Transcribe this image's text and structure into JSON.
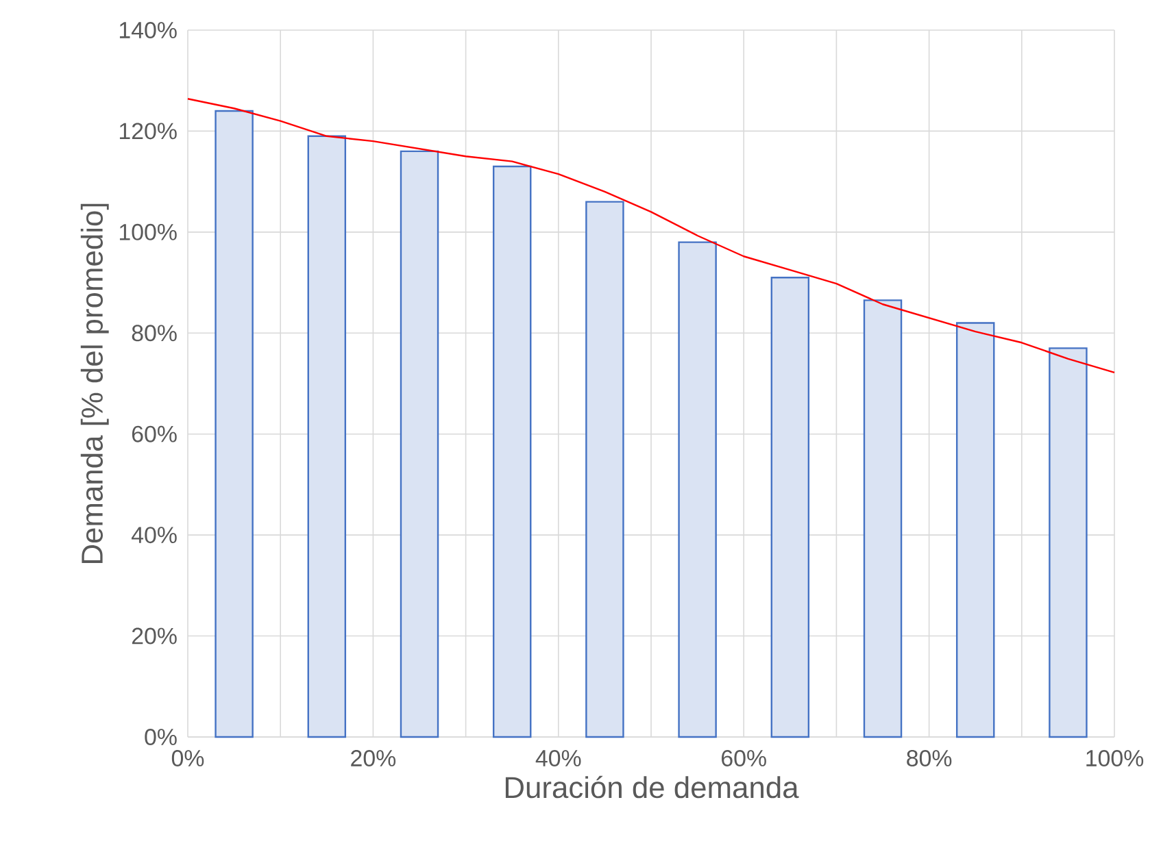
{
  "chart_data": {
    "type": "bar",
    "xlabel": "Duración de demanda",
    "ylabel": "Demanda [% del promedio]",
    "x": [
      5,
      15,
      25,
      35,
      45,
      55,
      65,
      75,
      85,
      95
    ],
    "series": [
      {
        "color": "#4472c4",
        "values": [
          124,
          119,
          116,
          113,
          106,
          98,
          91,
          86.5,
          82,
          77
        ]
      },
      {
        "type": "line",
        "color": "#ff0000",
        "x": [
          0,
          5,
          10,
          15,
          20,
          25,
          30,
          35,
          40,
          45,
          50,
          55,
          60,
          65,
          70,
          75,
          80,
          85,
          90,
          95,
          100
        ],
        "values": [
          126.4,
          124.5,
          122,
          119,
          118,
          116.5,
          115,
          114,
          111.5,
          108,
          104,
          99.3,
          95.2,
          92.5,
          89.8,
          85.7,
          83,
          80.3,
          78.1,
          74.9,
          72.2
        ]
      }
    ],
    "xlim": [
      0,
      100
    ],
    "xticks": [
      {
        "value": 0,
        "label": "0%"
      },
      {
        "value": 10,
        "label": null
      },
      {
        "value": 20,
        "label": "20%"
      },
      {
        "value": 30,
        "label": null
      },
      {
        "value": 40,
        "label": "40%"
      },
      {
        "value": 50,
        "label": null
      },
      {
        "value": 60,
        "label": "60%"
      },
      {
        "value": 70,
        "label": null
      },
      {
        "value": 80,
        "label": "80%"
      },
      {
        "value": 90,
        "label": null
      },
      {
        "value": 100,
        "label": "100%"
      }
    ],
    "ylim": [
      0,
      140
    ],
    "yticks": [
      {
        "value": 0,
        "label": "0%"
      },
      {
        "value": 20,
        "label": "20%"
      },
      {
        "value": 40,
        "label": "40%"
      },
      {
        "value": 60,
        "label": "60%"
      },
      {
        "value": 80,
        "label": "80%"
      },
      {
        "value": 100,
        "label": "100%"
      },
      {
        "value": 120,
        "label": "120%"
      },
      {
        "value": 140,
        "label": "140%"
      }
    ],
    "grid": true
  }
}
